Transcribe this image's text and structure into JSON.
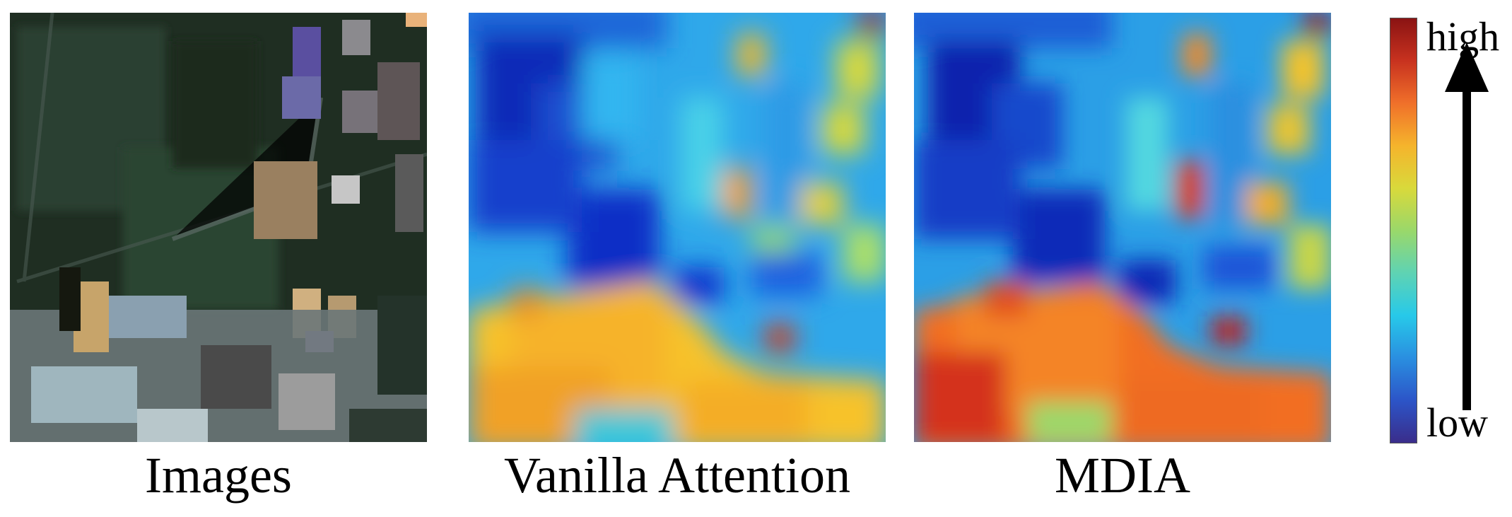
{
  "panels": [
    {
      "id": "images",
      "caption": "Images"
    },
    {
      "id": "vanilla",
      "caption": "Vanilla Attention"
    },
    {
      "id": "mdia",
      "caption": "MDIA"
    }
  ],
  "colorbar": {
    "high_label": "high",
    "low_label": "low",
    "colors": [
      "#3a2d8a",
      "#2c55c8",
      "#2a8fe0",
      "#27c9e9",
      "#5fd3b3",
      "#9ad86a",
      "#d9d93b",
      "#f5b42c",
      "#f0702a",
      "#c8321f",
      "#8a1313"
    ]
  }
}
